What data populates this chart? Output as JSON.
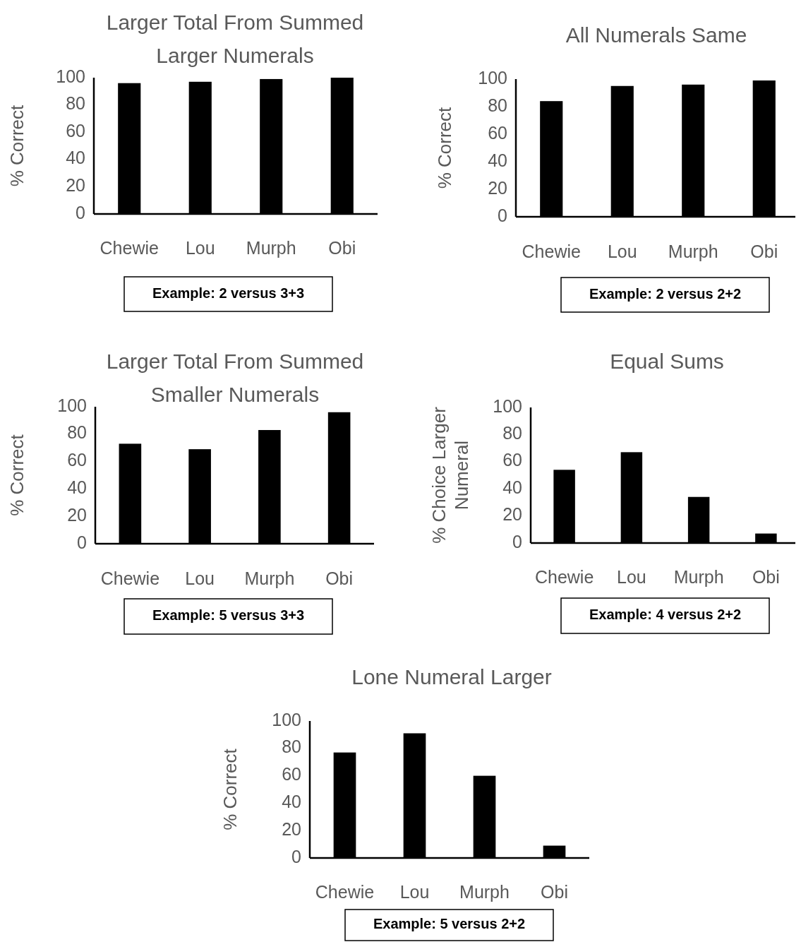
{
  "chart_data": [
    {
      "type": "bar",
      "title": "Larger Total From Summed Larger Numerals",
      "ylabel": "% Correct",
      "categories": [
        "Chewie",
        "Lou",
        "Murph",
        "Obi"
      ],
      "values": [
        96,
        97,
        99,
        100
      ],
      "color": "#000000",
      "ylim": [
        0,
        100
      ],
      "yticks": [
        0,
        20,
        40,
        60,
        80,
        100
      ],
      "grid": false,
      "annotations": [
        "Example: 2 versus 3+3"
      ]
    },
    {
      "type": "bar",
      "title": "All Numerals Same",
      "ylabel": "% Correct",
      "categories": [
        "Chewie",
        "Lou",
        "Murph",
        "Obi"
      ],
      "values": [
        84,
        95,
        96,
        99
      ],
      "color": "#000000",
      "ylim": [
        0,
        100
      ],
      "yticks": [
        0,
        20,
        40,
        60,
        80,
        100
      ],
      "grid": false,
      "annotations": [
        "Example: 2 versus 2+2"
      ]
    },
    {
      "type": "bar",
      "title": "Larger Total From Summed Smaller Numerals",
      "ylabel": "% Correct",
      "categories": [
        "Chewie",
        "Lou",
        "Murph",
        "Obi"
      ],
      "values": [
        73,
        69,
        83,
        96
      ],
      "color": "#000000",
      "ylim": [
        0,
        100
      ],
      "yticks": [
        0,
        20,
        40,
        60,
        80,
        100
      ],
      "grid": false,
      "annotations": [
        "Example: 5 versus 3+3"
      ]
    },
    {
      "type": "bar",
      "title": "Equal Sums",
      "ylabel": "% Choice Larger Numeral",
      "categories": [
        "Chewie",
        "Lou",
        "Murph",
        "Obi"
      ],
      "values": [
        54,
        67,
        34,
        7
      ],
      "color": "#000000",
      "ylim": [
        0,
        100
      ],
      "yticks": [
        0,
        20,
        40,
        60,
        80,
        100
      ],
      "grid": false,
      "annotations": [
        "Example: 4 versus 2+2"
      ]
    },
    {
      "type": "bar",
      "title": "Lone Numeral Larger",
      "ylabel": "% Correct",
      "categories": [
        "Chewie",
        "Lou",
        "Murph",
        "Obi"
      ],
      "values": [
        77,
        91,
        60,
        9
      ],
      "color": "#000000",
      "ylim": [
        0,
        100
      ],
      "yticks": [
        0,
        20,
        40,
        60,
        80,
        100
      ],
      "grid": false,
      "annotations": [
        "Example: 5 versus 2+2"
      ]
    }
  ]
}
